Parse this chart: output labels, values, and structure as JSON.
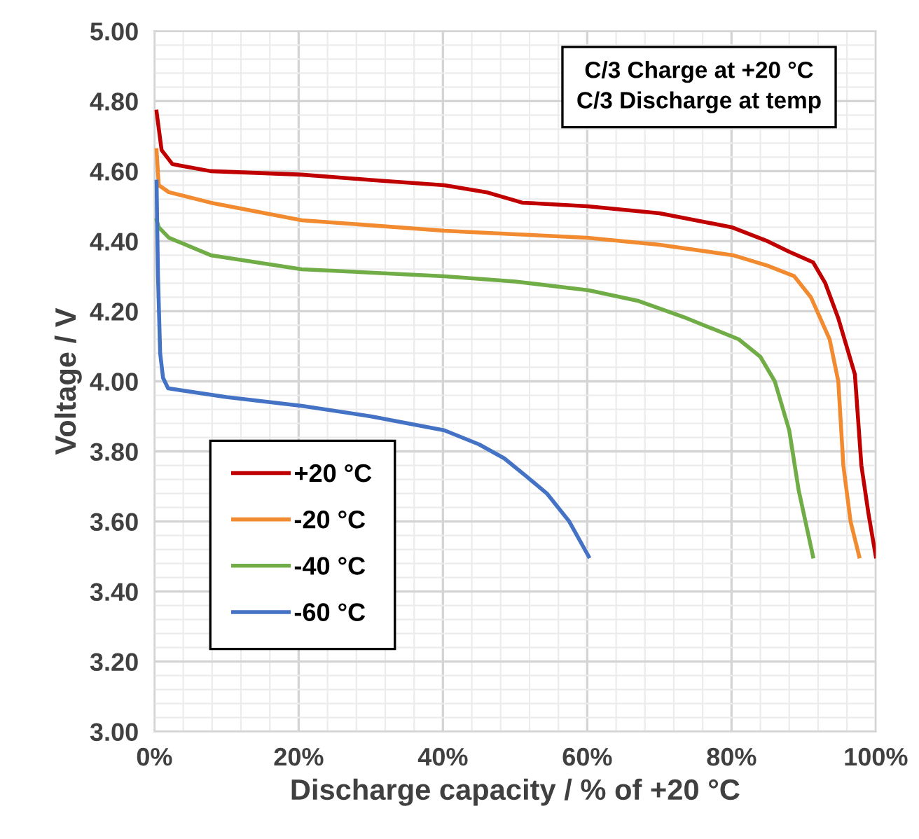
{
  "chart_data": {
    "type": "line",
    "xlabel": "Discharge capacity / % of +20 °C",
    "ylabel": "Voltage / V",
    "annotations": [
      "C/3 Charge at +20 °C\nC/3 Discharge at temp"
    ],
    "xlim": [
      0,
      100
    ],
    "ylim": [
      3.0,
      5.0
    ],
    "xticks": [
      {
        "value": 0,
        "label": "0%"
      },
      {
        "value": 20,
        "label": "20%"
      },
      {
        "value": 40,
        "label": "40%"
      },
      {
        "value": 60,
        "label": "60%"
      },
      {
        "value": 80,
        "label": "80%"
      },
      {
        "value": 100,
        "label": "100%"
      }
    ],
    "yticks": [
      {
        "value": 3.0,
        "label": "3.00"
      },
      {
        "value": 3.2,
        "label": "3.20"
      },
      {
        "value": 3.4,
        "label": "3.40"
      },
      {
        "value": 3.6,
        "label": "3.60"
      },
      {
        "value": 3.8,
        "label": "3.80"
      },
      {
        "value": 4.0,
        "label": "4.00"
      },
      {
        "value": 4.2,
        "label": "4.20"
      },
      {
        "value": 4.4,
        "label": "4.40"
      },
      {
        "value": 4.6,
        "label": "4.60"
      },
      {
        "value": 4.8,
        "label": "4.80"
      },
      {
        "value": 5.0,
        "label": "5.00"
      }
    ],
    "grid": true,
    "legend": "bottom left",
    "marker": "none",
    "line_style": "solid",
    "series": [
      {
        "name": "+20 °C",
        "color": "#c00000",
        "x": [
          0.3,
          1,
          2.5,
          7.8,
          20.4,
          30,
          40.2,
          46,
          51,
          60,
          70,
          80,
          85,
          88,
          91.3,
          93,
          94.8,
          97.1,
          98,
          99,
          100
        ],
        "values": [
          4.77,
          4.66,
          4.62,
          4.6,
          4.59,
          4.575,
          4.56,
          4.54,
          4.51,
          4.5,
          4.48,
          4.44,
          4.4,
          4.37,
          4.34,
          4.28,
          4.18,
          4.02,
          3.76,
          3.62,
          3.5
        ]
      },
      {
        "name": "-20 °C",
        "color": "#f28a30",
        "x": [
          0.3,
          0.6,
          2,
          7.8,
          20.4,
          40.2,
          50,
          60,
          70,
          80.2,
          85,
          88.7,
          91,
          93.6,
          94.8,
          95.5,
          96.5,
          97.7
        ],
        "values": [
          4.66,
          4.56,
          4.54,
          4.51,
          4.46,
          4.43,
          4.42,
          4.41,
          4.39,
          4.36,
          4.33,
          4.3,
          4.24,
          4.12,
          4.0,
          3.76,
          3.6,
          3.5
        ]
      },
      {
        "name": "-40 °C",
        "color": "#70ad47",
        "x": [
          0.3,
          0.6,
          2,
          7.8,
          20.4,
          40.2,
          50,
          60.2,
          67,
          73.8,
          81,
          84,
          86,
          88,
          89.3,
          91.3
        ],
        "values": [
          4.46,
          4.44,
          4.41,
          4.36,
          4.32,
          4.3,
          4.285,
          4.26,
          4.23,
          4.18,
          4.12,
          4.07,
          4.0,
          3.86,
          3.69,
          3.5
        ]
      },
      {
        "name": "-60 °C",
        "color": "#4472c4",
        "x": [
          0.3,
          0.5,
          0.8,
          1.2,
          1.9,
          10,
          20.4,
          30,
          40.2,
          45,
          48.5,
          51.5,
          54.4,
          57.5,
          60.2
        ],
        "values": [
          4.57,
          4.3,
          4.08,
          4.01,
          3.98,
          3.955,
          3.93,
          3.9,
          3.86,
          3.82,
          3.78,
          3.73,
          3.68,
          3.6,
          3.5
        ]
      }
    ]
  }
}
